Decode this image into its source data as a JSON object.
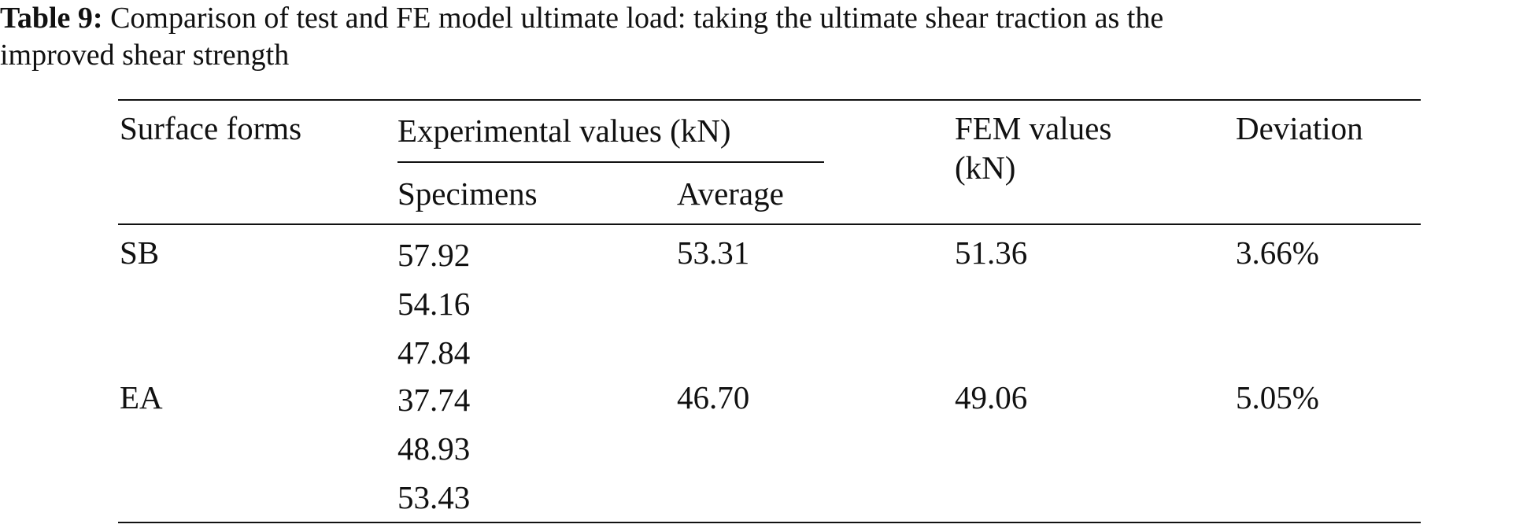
{
  "caption": {
    "label": "Table 9:",
    "text_line1": " Comparison of test and FE model ultimate load: taking the ultimate shear traction as the",
    "text_line2": "improved shear strength"
  },
  "table": {
    "headers": {
      "surface_forms": "Surface forms",
      "experimental": "Experimental values (kN)",
      "specimens": "Specimens",
      "average": "Average",
      "fem_line1": "FEM values",
      "fem_line2": "(kN)",
      "deviation": "Deviation"
    },
    "rows": [
      {
        "surface_form": "SB",
        "specimens": [
          "57.92",
          "54.16",
          "47.84"
        ],
        "average": "53.31",
        "fem": "51.36",
        "deviation": "3.66%"
      },
      {
        "surface_form": "EA",
        "specimens": [
          "37.74",
          "48.93",
          "53.43"
        ],
        "average": "46.70",
        "fem": "49.06",
        "deviation": "5.05%"
      }
    ]
  }
}
